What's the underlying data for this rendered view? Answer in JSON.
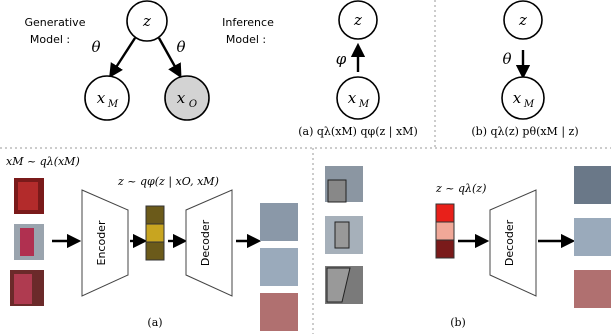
{
  "generative": {
    "label_line1": "Generative",
    "label_line2": "Model :",
    "z": "z",
    "theta_left": "θ",
    "theta_right": "θ",
    "xm": {
      "label": "x",
      "sub": "M"
    },
    "xo": {
      "label": "x",
      "sub": "O"
    }
  },
  "inference": {
    "label_line1": "Inference",
    "label_line2": "Model :",
    "z": "z",
    "phi": "φ",
    "xm": {
      "label": "x",
      "sub": "M"
    },
    "caption": "(a) qλ(xM) qφ(z | xM)"
  },
  "prior": {
    "z": "z",
    "theta": "θ",
    "xm": {
      "label": "x",
      "sub": "M"
    },
    "caption": "(b) qλ(z) pθ(xM | z)"
  },
  "panel_a": {
    "input_label": "xM ~ qλ(xM)",
    "latent_label": "z ~ qφ(z | xO, xM)",
    "encoder": "Encoder",
    "decoder": "Decoder",
    "caption": "(a)"
  },
  "panel_b": {
    "latent_label": "z ~ qλ(z)",
    "decoder": "Decoder",
    "caption": "(b)"
  }
}
